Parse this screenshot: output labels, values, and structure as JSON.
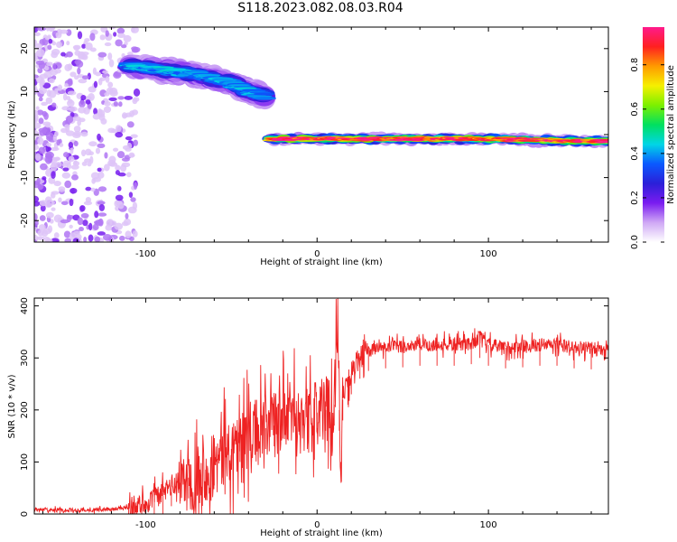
{
  "figure": {
    "title": "S118.2023.082.08.03.R04"
  },
  "colorbar": {
    "label": "Normalized spectral amplitude",
    "ticks": [
      "0.0",
      "0.2",
      "0.4",
      "0.6",
      "0.8"
    ],
    "tick_values": [
      0.0,
      0.2,
      0.4,
      0.6,
      0.8
    ],
    "range": [
      0.0,
      0.97
    ],
    "colormap_stops": [
      "#ffffff",
      "#cfa8f5",
      "#7a1cf0",
      "#2b1fd8",
      "#0a59ff",
      "#00d6e6",
      "#00e060",
      "#7cf000",
      "#f6f000",
      "#ff9a00",
      "#ff2020",
      "#ff1a8c"
    ]
  },
  "chart_data": [
    {
      "type": "heatmap",
      "title": "",
      "xlabel": "Height of straight line (km)",
      "ylabel": "Frequency (Hz)",
      "xlim": [
        -165,
        170
      ],
      "ylim": [
        -25,
        25
      ],
      "xticks": [
        -100,
        0,
        100
      ],
      "xtick_labels": [
        "-100",
        "0",
        "100"
      ],
      "yticks": [
        -20,
        -10,
        0,
        10,
        20
      ],
      "ytick_labels": [
        "-20",
        "-10",
        "0",
        "10",
        "20"
      ],
      "grid": false,
      "features": [
        {
          "kind": "scattered_noise",
          "x_range": [
            -165,
            -105
          ],
          "y_range": [
            -25,
            25
          ],
          "amplitude": 0.1
        },
        {
          "kind": "signal_band",
          "x": [
            -110,
            -90,
            -70,
            -50,
            -40,
            -30
          ],
          "y": [
            16,
            15,
            14,
            12,
            10,
            9
          ],
          "width_hz": 5,
          "peak_amplitude": 0.4
        },
        {
          "kind": "signal_band",
          "x": [
            -28,
            0,
            50,
            100,
            150,
            170
          ],
          "y": [
            -1,
            -1,
            -1,
            -1,
            -1.5,
            -1.5
          ],
          "width_hz": 2.5,
          "peak_amplitude": 0.9
        }
      ]
    },
    {
      "type": "line",
      "title": "",
      "xlabel": "Height of straight line (km)",
      "ylabel": "SNR (10 * v/v)",
      "xlim": [
        -165,
        170
      ],
      "ylim": [
        0,
        415
      ],
      "xticks": [
        -100,
        0,
        100
      ],
      "xtick_labels": [
        "-100",
        "0",
        "100"
      ],
      "yticks": [
        0,
        100,
        200,
        300,
        400
      ],
      "ytick_labels": [
        "0",
        "100",
        "200",
        "300",
        "400"
      ],
      "grid": false,
      "color": "#ee2222",
      "series": [
        {
          "x": [
            -165,
            -150,
            -140,
            -130,
            -120,
            -110,
            -100,
            -95,
            -90,
            -85,
            -80,
            -75,
            -70,
            -65,
            -60,
            -55,
            -50,
            -45,
            -40,
            -35,
            -30,
            -25,
            -20,
            -15,
            -10,
            -5,
            0,
            5,
            10,
            12,
            13,
            14,
            15,
            18,
            20,
            25,
            30,
            40,
            50,
            60,
            70,
            80,
            90,
            95,
            100,
            110,
            120,
            130,
            140,
            150,
            160,
            170
          ],
          "values": [
            8,
            8,
            7,
            8,
            9,
            12,
            20,
            30,
            40,
            55,
            60,
            70,
            75,
            85,
            95,
            110,
            125,
            140,
            150,
            160,
            165,
            170,
            185,
            190,
            195,
            175,
            195,
            200,
            210,
            400,
            200,
            100,
            220,
            250,
            270,
            300,
            315,
            320,
            322,
            325,
            325,
            325,
            328,
            340,
            325,
            320,
            322,
            325,
            325,
            320,
            318,
            318
          ]
        }
      ],
      "noise_amplitude": [
        {
          "x_range": [
            -165,
            -110
          ],
          "amplitude": 6
        },
        {
          "x_range": [
            -110,
            -80
          ],
          "amplitude": 35
        },
        {
          "x_range": [
            -80,
            15
          ],
          "amplitude": 110
        },
        {
          "x_range": [
            15,
            30
          ],
          "amplitude": 40
        },
        {
          "x_range": [
            30,
            170
          ],
          "amplitude": 22
        }
      ]
    }
  ]
}
